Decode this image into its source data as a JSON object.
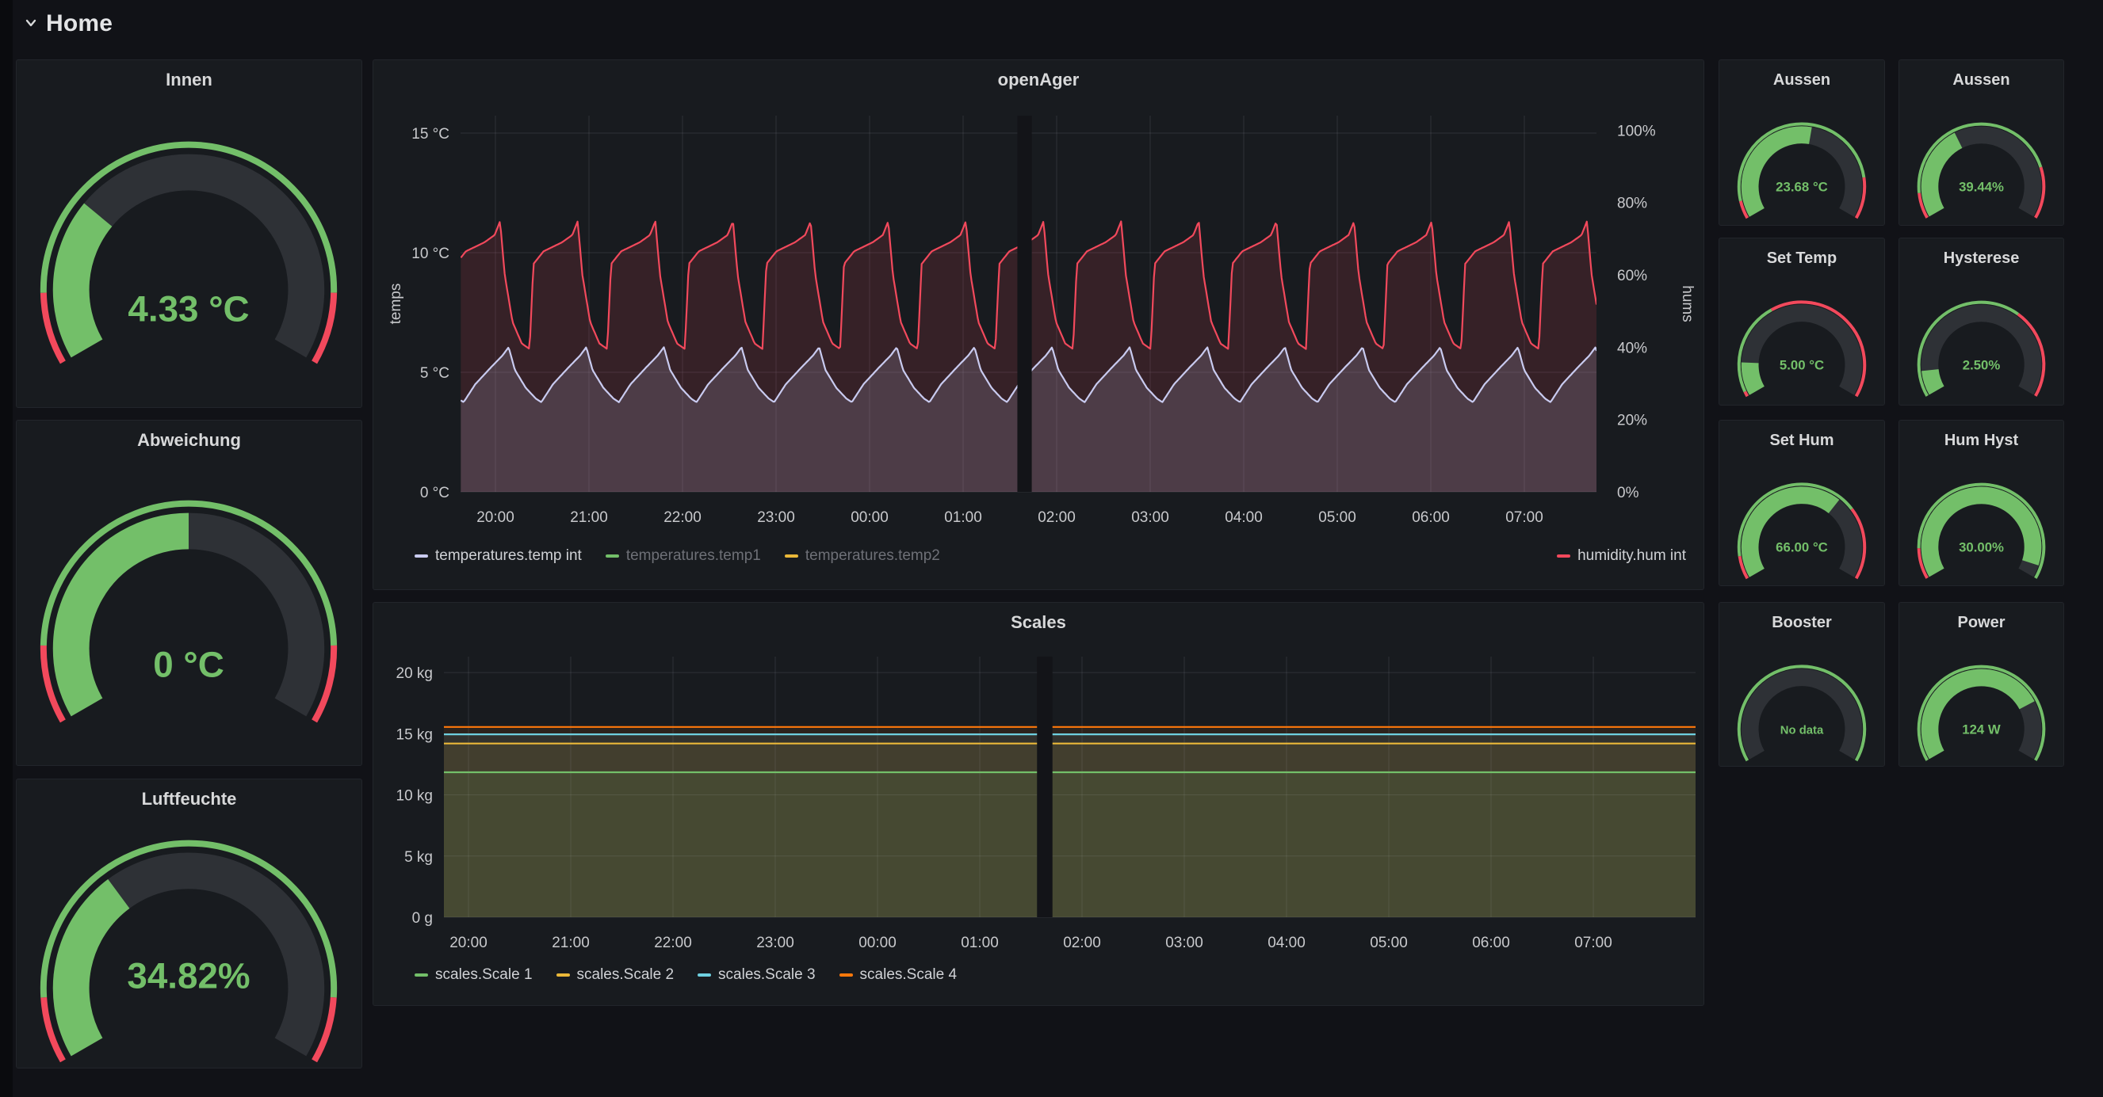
{
  "header": {
    "row_title": "Home"
  },
  "colors": {
    "green": "#73BF69",
    "red": "#F2495C",
    "yellow": "#EAB839",
    "light_blue": "#C9CBF0",
    "cyan": "#6ED0E0",
    "orange": "#FF780A",
    "panel_bg": "#181b1f",
    "page_bg": "#111217",
    "gauge_track": "#2e3136"
  },
  "gauges": {
    "innen": {
      "title": "Innen",
      "value": "4.33 °C",
      "fraction": 0.29,
      "ring": [
        [
          0,
          0.12,
          "#F2495C"
        ],
        [
          0.12,
          0.88,
          "#73BF69"
        ],
        [
          0.88,
          1,
          "#F2495C"
        ]
      ]
    },
    "abweichung": {
      "title": "Abweichung",
      "value": "0 °C",
      "fraction": 0.5,
      "ring": [
        [
          0,
          0.13,
          "#F2495C"
        ],
        [
          0.13,
          0.87,
          "#73BF69"
        ],
        [
          0.87,
          1,
          "#F2495C"
        ]
      ]
    },
    "luftfeuchte": {
      "title": "Luftfeuchte",
      "value": "34.82%",
      "fraction": 0.348,
      "ring": [
        [
          0,
          0.11,
          "#F2495C"
        ],
        [
          0.11,
          0.89,
          "#73BF69"
        ],
        [
          0.89,
          1,
          "#F2495C"
        ]
      ]
    },
    "aussen_temp": {
      "title": "Aussen",
      "value": "23.68 °C",
      "fraction": 0.54,
      "ring": [
        [
          0,
          0.07,
          "#F2495C"
        ],
        [
          0.07,
          0.84,
          "#73BF69"
        ],
        [
          0.84,
          1,
          "#F2495C"
        ]
      ]
    },
    "aussen_hum": {
      "title": "Aussen",
      "value": "39.44%",
      "fraction": 0.39,
      "ring": [
        [
          0,
          0.1,
          "#F2495C"
        ],
        [
          0.1,
          0.8,
          "#73BF69"
        ],
        [
          0.8,
          1,
          "#F2495C"
        ]
      ]
    },
    "set_temp": {
      "title": "Set Temp",
      "value": "5.00 °C",
      "fraction": 0.135,
      "ring": [
        [
          0,
          0.02,
          "#F2495C"
        ],
        [
          0.02,
          0.38,
          "#73BF69"
        ],
        [
          0.38,
          1,
          "#F2495C"
        ]
      ]
    },
    "hysterese": {
      "title": "Hysterese",
      "value": "2.50%",
      "fraction": 0.1,
      "ring": [
        [
          0,
          0.65,
          "#73BF69"
        ],
        [
          0.65,
          1,
          "#F2495C"
        ]
      ]
    },
    "set_hum": {
      "title": "Set Hum",
      "value": "66.00 °C",
      "fraction": 0.66,
      "ring": [
        [
          0,
          0.09,
          "#F2495C"
        ],
        [
          0.09,
          0.72,
          "#73BF69"
        ],
        [
          0.72,
          1,
          "#F2495C"
        ]
      ]
    },
    "hum_hyst": {
      "title": "Hum Hyst",
      "value": "30.00%",
      "fraction": 0.95,
      "ring": [
        [
          0,
          0.12,
          "#F2495C"
        ],
        [
          0.12,
          1,
          "#73BF69"
        ]
      ]
    },
    "booster": {
      "title": "Booster",
      "value": "No data",
      "fraction": 0,
      "ring": [
        [
          0,
          1,
          "#73BF69"
        ]
      ]
    },
    "power": {
      "title": "Power",
      "value": "124 W",
      "fraction": 0.76,
      "ring": [
        [
          0,
          1,
          "#73BF69"
        ]
      ]
    }
  },
  "chart_data": [
    {
      "type": "line",
      "title": "openAger",
      "x_axis": {
        "hours_after_2000": [
          0,
          1,
          2,
          3,
          4,
          5,
          6,
          7,
          8,
          9,
          10,
          11
        ],
        "labels": [
          "20:00",
          "21:00",
          "22:00",
          "23:00",
          "00:00",
          "01:00",
          "02:00",
          "03:00",
          "04:00",
          "05:00",
          "06:00",
          "07:00"
        ],
        "domain_start": -0.37,
        "domain_end": 11.78
      },
      "left_axis": {
        "label": "temps",
        "min": 0,
        "max": 15.73,
        "ticks": [
          {
            "v": 0,
            "t": "0 °C"
          },
          {
            "v": 5,
            "t": "5 °C"
          },
          {
            "v": 10,
            "t": "10 °C"
          },
          {
            "v": 15,
            "t": "15 °C"
          }
        ]
      },
      "right_axis": {
        "label": "hums",
        "min": 0,
        "max": 104,
        "ticks": [
          {
            "v": 0,
            "t": "0%"
          },
          {
            "v": 20,
            "t": "20%"
          },
          {
            "v": 40,
            "t": "40%"
          },
          {
            "v": 60,
            "t": "60%"
          },
          {
            "v": 80,
            "t": "80%"
          },
          {
            "v": 100,
            "t": "100%"
          }
        ]
      },
      "data_gap": {
        "at": 5.64,
        "width": 0.12
      },
      "series": [
        {
          "name": "humidity.hum int",
          "color": "#F2495C",
          "axis": "right",
          "visible": true,
          "legend_align": "right",
          "fill_opacity": 0.14,
          "waveform": {
            "period": 0.83,
            "phase": -0.465,
            "points": [
              [
                0,
                39.5
              ],
              [
                0.05,
                63
              ],
              [
                0.18,
                66.5
              ],
              [
                0.42,
                69
              ],
              [
                0.55,
                71
              ],
              [
                0.62,
                74.8
              ],
              [
                0.68,
                60
              ],
              [
                0.78,
                47
              ],
              [
                0.9,
                41
              ],
              [
                1,
                39.5
              ]
            ]
          }
        },
        {
          "name": "temperatures.temp int",
          "color": "#C9CBF0",
          "axis": "left",
          "visible": true,
          "fill_opacity": 0.16,
          "waveform": {
            "period": 0.83,
            "phase": -0.34,
            "points": [
              [
                0,
                3.75
              ],
              [
                0.15,
                4.5
              ],
              [
                0.35,
                5.2
              ],
              [
                0.5,
                5.7
              ],
              [
                0.58,
                6.05
              ],
              [
                0.66,
                5.1
              ],
              [
                0.8,
                4.35
              ],
              [
                0.93,
                3.9
              ],
              [
                1,
                3.75
              ]
            ]
          }
        },
        {
          "name": "temperatures.temp1",
          "color": "#73BF69",
          "axis": "left",
          "visible": false
        },
        {
          "name": "temperatures.temp2",
          "color": "#EAB839",
          "axis": "left",
          "visible": false
        }
      ],
      "legend_order": [
        "temperatures.temp int",
        "temperatures.temp1",
        "temperatures.temp2",
        "humidity.hum int"
      ]
    },
    {
      "type": "line",
      "title": "Scales",
      "x_axis": {
        "hours_after_2000": [
          0,
          1,
          2,
          3,
          4,
          5,
          6,
          7,
          8,
          9,
          10,
          11
        ],
        "labels": [
          "20:00",
          "21:00",
          "22:00",
          "23:00",
          "00:00",
          "01:00",
          "02:00",
          "03:00",
          "04:00",
          "05:00",
          "06:00",
          "07:00"
        ],
        "domain_start": -0.24,
        "domain_end": 12.0
      },
      "left_axis": {
        "label": "",
        "min": 0,
        "max": 21.3,
        "ticks": [
          {
            "v": 0,
            "t": "0 g"
          },
          {
            "v": 5,
            "t": "5 kg"
          },
          {
            "v": 10,
            "t": "10 kg"
          },
          {
            "v": 15,
            "t": "15 kg"
          },
          {
            "v": 20,
            "t": "20 kg"
          }
        ]
      },
      "data_gap": {
        "at": 5.62,
        "width": 0.12
      },
      "series": [
        {
          "name": "scales.Scale 4",
          "color": "#FF780A",
          "axis": "left",
          "visible": true,
          "fill_opacity": 0.09,
          "constant": 15.55
        },
        {
          "name": "scales.Scale 3",
          "color": "#6ED0E0",
          "axis": "left",
          "visible": true,
          "fill_opacity": 0.09,
          "constant": 14.95
        },
        {
          "name": "scales.Scale 2",
          "color": "#EAB839",
          "axis": "left",
          "visible": true,
          "fill_opacity": 0.09,
          "constant": 14.2
        },
        {
          "name": "scales.Scale 1",
          "color": "#73BF69",
          "axis": "left",
          "visible": true,
          "fill_opacity": 0.09,
          "constant": 11.85
        }
      ],
      "legend_order": [
        "scales.Scale 1",
        "scales.Scale 2",
        "scales.Scale 3",
        "scales.Scale 4"
      ]
    }
  ]
}
